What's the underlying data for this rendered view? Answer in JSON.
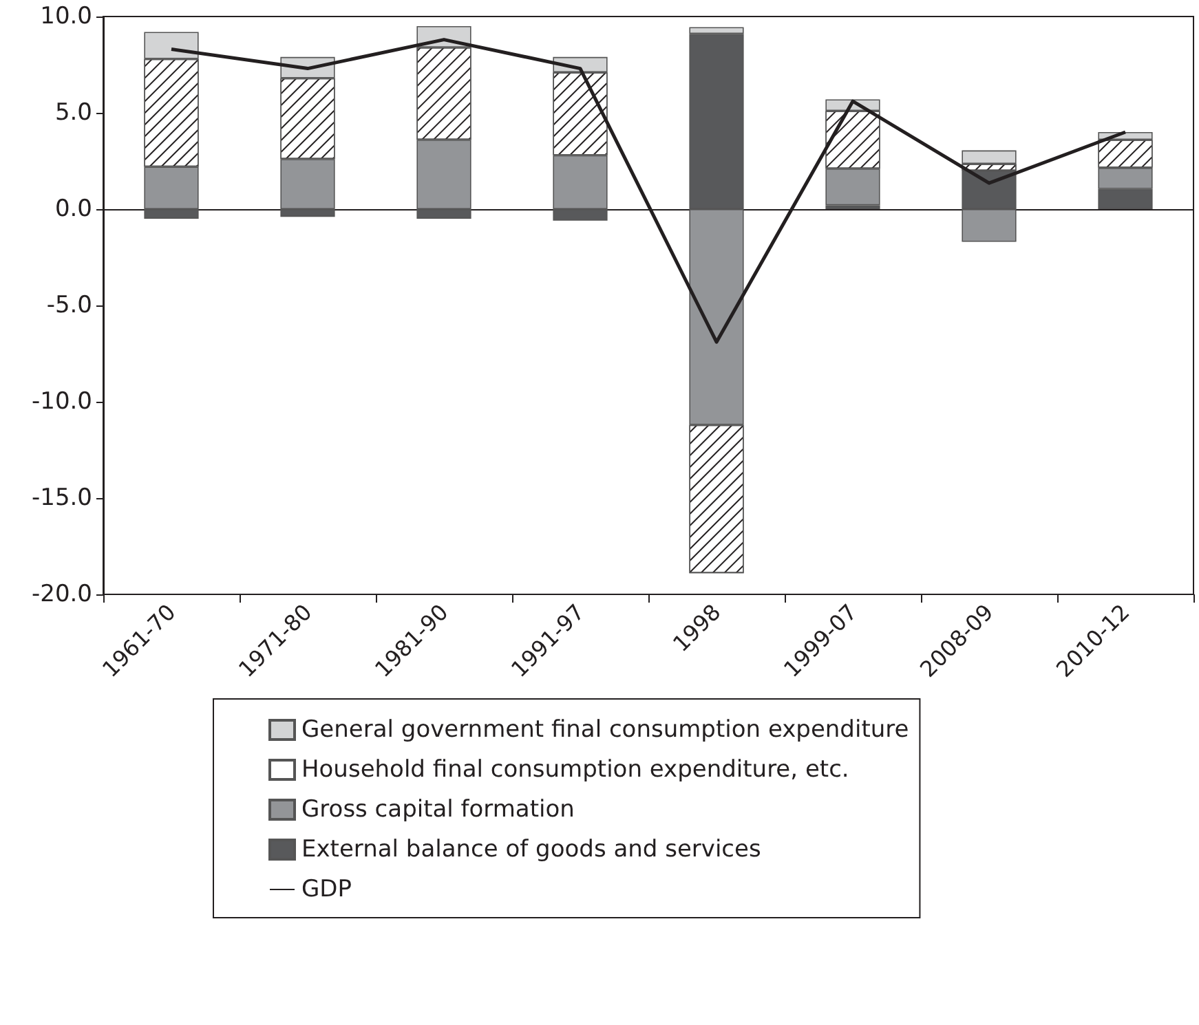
{
  "chart_data": {
    "type": "bar",
    "stacked": true,
    "categories": [
      "1961-70",
      "1971-80",
      "1981-90",
      "1991-97",
      "1998",
      "1999-07",
      "2008-09",
      "2010-12"
    ],
    "series": [
      {
        "name": "External balance of goods and services",
        "color": "#58595b",
        "values": [
          -0.5,
          -0.4,
          -0.5,
          -0.6,
          9.1,
          0.2,
          2.0,
          1.05
        ]
      },
      {
        "name": "Gross capital formation",
        "color": "#939598",
        "values": [
          2.2,
          2.6,
          3.6,
          2.8,
          -11.2,
          1.9,
          -1.7,
          1.1
        ]
      },
      {
        "name": "Household final consumption expenditure, etc.",
        "color": "#ffffff",
        "values": [
          5.6,
          4.2,
          4.8,
          4.3,
          -7.7,
          3.0,
          0.35,
          1.45
        ]
      },
      {
        "name": "General government final consumption expenditure",
        "color": "#d3d4d5",
        "values": [
          1.4,
          1.1,
          1.1,
          0.8,
          0.35,
          0.6,
          0.7,
          0.4
        ]
      },
      {
        "name": "GDP",
        "type": "line",
        "color": "#231f20",
        "marker": "none",
        "values": [
          8.3,
          7.3,
          8.8,
          7.3,
          -6.9,
          5.6,
          1.35,
          4.0
        ]
      }
    ],
    "ylim": [
      -20,
      10
    ],
    "yticks": [
      {
        "value": -20,
        "label": "-20.0"
      },
      {
        "value": -15,
        "label": "-15.0"
      },
      {
        "value": -10,
        "label": "-10.0"
      },
      {
        "value": -5,
        "label": "-5.0"
      },
      {
        "value": 0,
        "label": "0.0"
      },
      {
        "value": 5,
        "label": "5.0"
      },
      {
        "value": 10,
        "label": "10.0"
      }
    ],
    "legend": "bottom"
  }
}
